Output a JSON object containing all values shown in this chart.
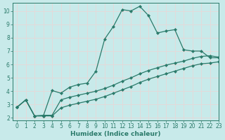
{
  "xlabel": "Humidex (Indice chaleur)",
  "ylabel": "",
  "bg_color": "#c8eaea",
  "line_color": "#2a7a6a",
  "grid_color": "#e8d8d8",
  "xlim": [
    -0.5,
    23
  ],
  "ylim": [
    1.8,
    10.6
  ],
  "xticks": [
    0,
    1,
    2,
    3,
    4,
    5,
    6,
    7,
    8,
    9,
    10,
    11,
    12,
    13,
    14,
    15,
    16,
    17,
    18,
    19,
    20,
    21,
    22,
    23
  ],
  "yticks": [
    2,
    3,
    4,
    5,
    6,
    7,
    8,
    9,
    10
  ],
  "line1_x": [
    0,
    1,
    2,
    3,
    4,
    5,
    6,
    7,
    8,
    9,
    10,
    11,
    12,
    13,
    14,
    15,
    16,
    17,
    18,
    19,
    20,
    21,
    22,
    23
  ],
  "line1_y": [
    2.8,
    3.35,
    2.15,
    2.15,
    4.05,
    3.85,
    4.3,
    4.5,
    4.6,
    5.5,
    7.9,
    8.85,
    10.1,
    10.0,
    10.35,
    9.65,
    8.35,
    8.5,
    8.6,
    7.1,
    7.0,
    7.0,
    6.5,
    6.5
  ],
  "line2_x": [
    0,
    1,
    2,
    3,
    4,
    5,
    6,
    7,
    8,
    9,
    10,
    11,
    12,
    13,
    14,
    15,
    16,
    17,
    18,
    19,
    20,
    21,
    22,
    23
  ],
  "line2_y": [
    2.8,
    3.35,
    2.15,
    2.2,
    2.2,
    3.35,
    3.55,
    3.7,
    3.85,
    4.0,
    4.2,
    4.45,
    4.75,
    5.0,
    5.3,
    5.55,
    5.75,
    5.95,
    6.1,
    6.25,
    6.45,
    6.6,
    6.65,
    6.55
  ],
  "line3_x": [
    0,
    1,
    2,
    3,
    4,
    5,
    6,
    7,
    8,
    9,
    10,
    11,
    12,
    13,
    14,
    15,
    16,
    17,
    18,
    19,
    20,
    21,
    22,
    23
  ],
  "line3_y": [
    2.8,
    3.35,
    2.15,
    2.15,
    2.15,
    2.75,
    2.95,
    3.1,
    3.25,
    3.4,
    3.6,
    3.85,
    4.1,
    4.35,
    4.65,
    4.9,
    5.1,
    5.3,
    5.5,
    5.7,
    5.9,
    6.05,
    6.1,
    6.2
  ],
  "marker": "D",
  "marker_size": 2.2,
  "linewidth": 0.9,
  "tick_fontsize": 5.5,
  "xlabel_fontsize": 6.5
}
